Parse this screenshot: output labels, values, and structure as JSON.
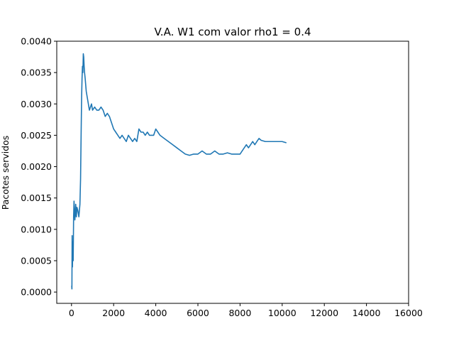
{
  "chart_data": {
    "type": "line",
    "title": "V.A. W1 com valor rho1 = 0.4",
    "xlabel": "",
    "ylabel": "Pacotes servidos",
    "xlim": [
      -700,
      16000
    ],
    "ylim": [
      -0.00018,
      0.004
    ],
    "x_ticks": [
      0,
      2000,
      4000,
      6000,
      8000,
      10000,
      12000,
      14000,
      16000
    ],
    "x_tick_labels": [
      "0",
      "2000",
      "4000",
      "6000",
      "8000",
      "10000",
      "12000",
      "14000",
      "16000"
    ],
    "y_ticks": [
      0.0,
      0.0005,
      0.001,
      0.0015,
      0.002,
      0.0025,
      0.003,
      0.0035,
      0.004
    ],
    "y_tick_labels": [
      "0.0000",
      "0.0005",
      "0.0010",
      "0.0015",
      "0.0020",
      "0.0025",
      "0.0030",
      "0.0035",
      "0.0040"
    ],
    "grid": false,
    "line_color": "#1f77b4",
    "series": [
      {
        "name": "",
        "x": [
          10,
          20,
          30,
          45,
          60,
          80,
          100,
          120,
          140,
          160,
          180,
          200,
          230,
          260,
          300,
          350,
          400,
          430,
          460,
          480,
          500,
          520,
          540,
          560,
          580,
          600,
          620,
          650,
          700,
          750,
          800,
          850,
          900,
          950,
          1000,
          1100,
          1200,
          1300,
          1400,
          1500,
          1600,
          1700,
          1800,
          1900,
          2000,
          2100,
          2200,
          2300,
          2400,
          2500,
          2600,
          2700,
          2800,
          2900,
          3000,
          3100,
          3200,
          3300,
          3400,
          3500,
          3600,
          3700,
          3800,
          3900,
          4000,
          4100,
          4200,
          4400,
          4600,
          4800,
          5000,
          5200,
          5400,
          5600,
          5800,
          6000,
          6200,
          6400,
          6600,
          6800,
          7000,
          7200,
          7400,
          7600,
          7800,
          8000,
          8100,
          8200,
          8300,
          8400,
          8500,
          8600,
          8700,
          8800,
          8900,
          9000,
          9200,
          9400,
          9600,
          9800,
          10000,
          10200
        ],
        "y": [
          0.0001,
          5e-05,
          0.0009,
          0.0004,
          0.0008,
          0.0005,
          0.0012,
          0.00145,
          0.0013,
          0.00115,
          0.00125,
          0.0014,
          0.0012,
          0.00135,
          0.0013,
          0.0012,
          0.0014,
          0.0018,
          0.0026,
          0.0031,
          0.0034,
          0.0036,
          0.0035,
          0.0038,
          0.00375,
          0.0036,
          0.0035,
          0.0034,
          0.0032,
          0.0031,
          0.003,
          0.0029,
          0.00295,
          0.003,
          0.0029,
          0.00295,
          0.0029,
          0.0029,
          0.00295,
          0.0029,
          0.0028,
          0.00285,
          0.0028,
          0.0027,
          0.0026,
          0.00255,
          0.0025,
          0.00245,
          0.0025,
          0.00245,
          0.0024,
          0.0025,
          0.00245,
          0.0024,
          0.00245,
          0.0024,
          0.0026,
          0.00255,
          0.00255,
          0.0025,
          0.00255,
          0.0025,
          0.0025,
          0.0025,
          0.0026,
          0.00255,
          0.0025,
          0.00245,
          0.0024,
          0.00235,
          0.0023,
          0.00225,
          0.0022,
          0.00218,
          0.0022,
          0.0022,
          0.00225,
          0.0022,
          0.0022,
          0.00225,
          0.0022,
          0.0022,
          0.00222,
          0.0022,
          0.0022,
          0.0022,
          0.00225,
          0.0023,
          0.00235,
          0.0023,
          0.00235,
          0.0024,
          0.00235,
          0.0024,
          0.00245,
          0.00242,
          0.0024,
          0.0024,
          0.0024,
          0.0024,
          0.0024,
          0.00238
        ]
      }
    ]
  }
}
